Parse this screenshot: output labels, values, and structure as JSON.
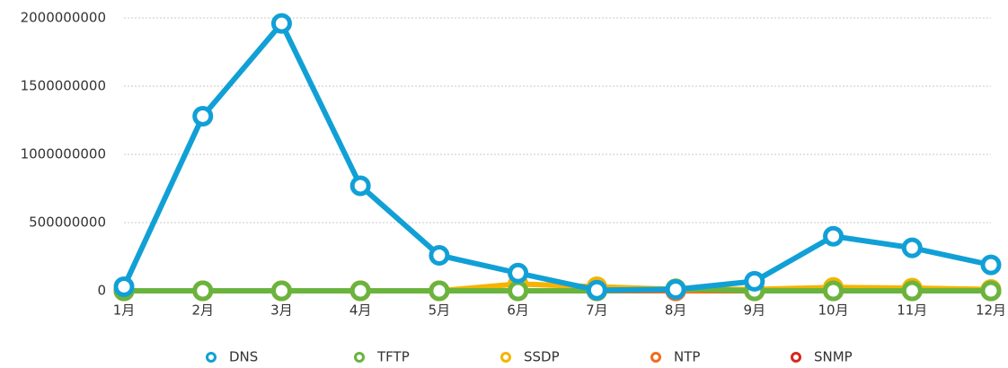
{
  "chart_data": {
    "type": "line",
    "categories": [
      "1月",
      "2月",
      "3月",
      "4月",
      "5月",
      "6月",
      "7月",
      "8月",
      "9月",
      "10月",
      "11月",
      "12月"
    ],
    "series": [
      {
        "name": "DNS",
        "color": "#11a0d6",
        "values": [
          30000000,
          1280000000,
          1960000000,
          770000000,
          260000000,
          130000000,
          5000000,
          10000000,
          70000000,
          400000000,
          315000000,
          190000000
        ]
      },
      {
        "name": "TFTP",
        "color": "#6ab43e",
        "values": [
          0,
          0,
          0,
          0,
          0,
          0,
          0,
          15000000,
          0,
          0,
          0,
          0
        ]
      },
      {
        "name": "SSDP",
        "color": "#f4b400",
        "values": [
          0,
          0,
          0,
          0,
          0,
          50000000,
          30000000,
          10000000,
          10000000,
          25000000,
          20000000,
          10000000
        ]
      },
      {
        "name": "NTP",
        "color": "#f26b1d",
        "values": [
          0,
          0,
          0,
          0,
          0,
          0,
          0,
          0,
          0,
          0,
          0,
          0
        ]
      },
      {
        "name": "SNMP",
        "color": "#d9261c",
        "values": [
          0,
          0,
          0,
          0,
          0,
          0,
          0,
          0,
          0,
          0,
          0,
          0
        ]
      }
    ],
    "ylim": [
      0,
      2000000000
    ],
    "yticks": [
      0,
      500000000,
      1000000000,
      1500000000,
      2000000000
    ],
    "grid": true,
    "legend": "bottom"
  }
}
